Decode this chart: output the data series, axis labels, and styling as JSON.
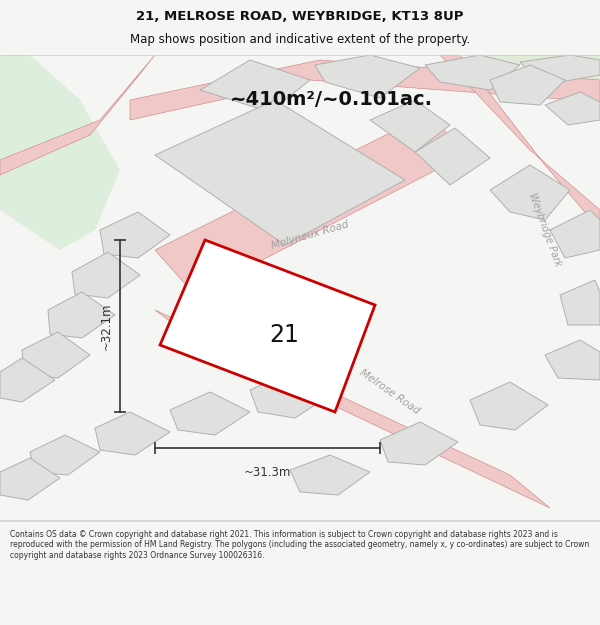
{
  "title_line1": "21, MELROSE ROAD, WEYBRIDGE, KT13 8UP",
  "title_line2": "Map shows position and indicative extent of the property.",
  "area_label": "~410m²/~0.101ac.",
  "property_number": "21",
  "dim_vertical": "~32.1m",
  "dim_horizontal": "~31.3m",
  "footer_text": "Contains OS data © Crown copyright and database right 2021. This information is subject to Crown copyright and database rights 2023 and is reproduced with the permission of HM Land Registry. The polygons (including the associated geometry, namely x, y co-ordinates) are subject to Crown copyright and database rights 2023 Ordnance Survey 100026316.",
  "map_bg": "#f5f5f3",
  "property_fill": "#e8e8e6",
  "plot_fill": "#e0e0de",
  "plot_edge": "#c8a0a0",
  "plot_edge_grey": "#b0b0b0",
  "green_area": "#ddeedd",
  "green_area2": "#e0ecd8",
  "property_outline": "#cc0000",
  "road_band": "#f0c8c8",
  "road_line": "#d09090",
  "dim_color": "#333333",
  "road_label_color": "#a0a0a0",
  "title_color": "#111111",
  "footer_color": "#333333",
  "bg_color": "#f5f5f3",
  "title_fontsize": 9.5,
  "subtitle_fontsize": 8.5,
  "area_fontsize": 14,
  "prop_num_fontsize": 17,
  "dim_fontsize": 8.5,
  "road_label_fontsize": 7.5,
  "footer_fontsize": 5.5
}
